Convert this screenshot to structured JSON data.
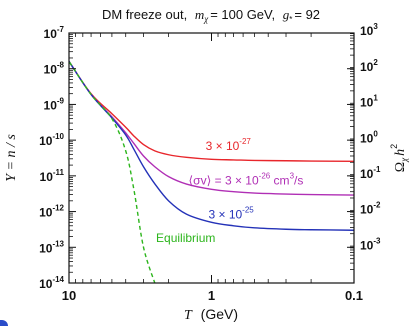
{
  "chart_data": {
    "type": "line",
    "title": {
      "prefix": "DM freeze out,",
      "mass_symbol": "m",
      "mass_sub": "χ",
      "mass_value": "= 100 GeV,",
      "gstar_symbol": "g",
      "gstar_sup": "*",
      "gstar_value": "= 92"
    },
    "xlabel": {
      "symbol": "T",
      "unit": "(GeV)"
    },
    "ylabel": {
      "text": "Y = n / s"
    },
    "y2label": {
      "symbol": "Ω",
      "sub": "χ",
      "rest": "h",
      "sup": "2"
    },
    "x_axis": {
      "scale": "log",
      "reversed": true,
      "range": [
        10,
        0.1
      ],
      "ticks": [
        10,
        1,
        0.1
      ],
      "tick_labels": [
        "10",
        "1",
        "0.1"
      ]
    },
    "y_axis": {
      "scale": "log",
      "range": [
        1e-14,
        1e-07
      ],
      "ticks": [
        {
          "value": 1e-07,
          "base": "10",
          "exp": "-7"
        },
        {
          "value": 1e-08,
          "base": "10",
          "exp": "-8"
        },
        {
          "value": 1e-09,
          "base": "10",
          "exp": "-9"
        },
        {
          "value": 1e-10,
          "base": "10",
          "exp": "-10"
        },
        {
          "value": 1e-11,
          "base": "10",
          "exp": "-11"
        },
        {
          "value": 1e-12,
          "base": "10",
          "exp": "-12"
        },
        {
          "value": 1e-13,
          "base": "10",
          "exp": "-13"
        },
        {
          "value": 1e-14,
          "base": "10",
          "exp": "-14"
        }
      ]
    },
    "y2_axis": {
      "ticks": [
        {
          "y_value": 1.2e-07,
          "base": "10",
          "exp": "3"
        },
        {
          "y_value": 1.2e-08,
          "base": "10",
          "exp": "2"
        },
        {
          "y_value": 1.2e-09,
          "base": "10",
          "exp": "1"
        },
        {
          "y_value": 1.2e-10,
          "base": "10",
          "exp": "0"
        },
        {
          "y_value": 1.2e-11,
          "base": "10",
          "exp": "-1"
        },
        {
          "y_value": 1.2e-12,
          "base": "10",
          "exp": "-2"
        },
        {
          "y_value": 1.2e-13,
          "base": "10",
          "exp": "-3"
        }
      ]
    },
    "series": [
      {
        "color": "#e8262b",
        "dash": false,
        "x": [
          13.5,
          10,
          7,
          5,
          4,
          3.5,
          3,
          2.5,
          2,
          1.5,
          1,
          0.7,
          0.5,
          0.3,
          0.2,
          0.1
        ],
        "y": [
          1e-07,
          1.6e-08,
          2e-09,
          5.5e-10,
          2.3e-10,
          1.3e-10,
          7.5e-11,
          5e-11,
          3.9e-11,
          3.3e-11,
          2.9e-11,
          2.8e-11,
          2.7e-11,
          2.65e-11,
          2.6e-11,
          2.55e-11
        ],
        "label": {
          "base": "3 × 10",
          "exp": "-27",
          "x": 1.1,
          "y": 5.3e-11
        }
      },
      {
        "color": "#b02fb5",
        "dash": false,
        "x": [
          13.5,
          10,
          7,
          5,
          4,
          3.5,
          3,
          2.5,
          2,
          1.5,
          1,
          0.7,
          0.5,
          0.3,
          0.2,
          0.1
        ],
        "y": [
          1e-07,
          1.6e-08,
          1.9e-09,
          4.5e-10,
          1.6e-10,
          8e-11,
          3.6e-11,
          1.8e-11,
          9.5e-12,
          5.9e-12,
          4.2e-12,
          3.6e-12,
          3.3e-12,
          3.1e-12,
          3e-12,
          2.9e-12
        ],
        "label": {
          "pre": "⟨σv⟩ = 3 × 10",
          "exp": "-26",
          "post": " cm",
          "post_sup": "3",
          "tail": "/s",
          "x": 1.45,
          "y": 5.8e-12
        }
      },
      {
        "color": "#2432b8",
        "dash": false,
        "x": [
          13.5,
          10,
          7,
          5,
          4,
          3.5,
          3,
          2.5,
          2,
          1.5,
          1,
          0.7,
          0.5,
          0.3,
          0.2,
          0.1
        ],
        "y": [
          1e-07,
          1.6e-08,
          1.9e-09,
          4.2e-10,
          1.4e-10,
          5.5e-11,
          1.8e-11,
          6e-12,
          2e-12,
          8.5e-13,
          5e-13,
          4e-13,
          3.5e-13,
          3.2e-13,
          3.1e-13,
          3e-13
        ],
        "label": {
          "base": "3 × 10",
          "exp": "-25",
          "x": 1.05,
          "y": 6.3e-13
        }
      },
      {
        "color": "#2cb51c",
        "dash": true,
        "x": [
          13.5,
          10,
          7,
          5,
          4,
          3.5,
          3,
          2.5
        ],
        "y": [
          1e-07,
          1.6e-08,
          1.9e-09,
          4e-10,
          5e-11,
          4e-12,
          1e-13,
          1e-14
        ],
        "label": {
          "text": "Equilibrium",
          "x": 2.45,
          "y": 1.4e-13
        }
      }
    ]
  }
}
